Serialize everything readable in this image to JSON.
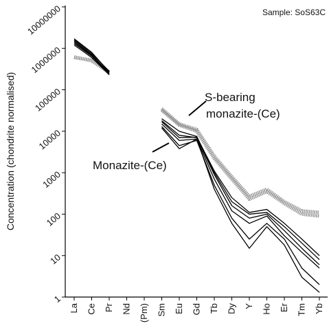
{
  "chart_data": {
    "type": "line",
    "sample_label": "Sample: SoS63C",
    "ylabel": "Concentration (chondrite normalised)",
    "annotations": [
      {
        "lines": [
          "S-bearing",
          "monazite-(Ce)"
        ]
      },
      {
        "lines": [
          "Monazite-(Ce)"
        ]
      }
    ],
    "categories": [
      "La",
      "Ce",
      "Pr",
      "Nd",
      "(Pm)",
      "Sm",
      "Eu",
      "Gd",
      "Tb",
      "Dy",
      "Y",
      "Ho",
      "Er",
      "Tm",
      "Yb"
    ],
    "log_scale": true,
    "ylim": [
      1,
      10000000
    ],
    "yticks": [
      1,
      10,
      100,
      1000,
      10000,
      100000,
      1000000,
      10000000
    ],
    "series": [
      {
        "color": "#999999",
        "style": "hatched",
        "values": [
          600000,
          520000,
          270000,
          null,
          null,
          35000,
          15000,
          11000,
          2500,
          800,
          270,
          400,
          200,
          120,
          110
        ]
      },
      {
        "color": "#999999",
        "style": "hatched",
        "values": [
          620000,
          500000,
          260000,
          null,
          null,
          32000,
          14000,
          10000,
          2200,
          700,
          230,
          350,
          180,
          100,
          90
        ]
      },
      {
        "color": "#000000",
        "values": [
          1700000,
          800000,
          270000,
          null,
          null,
          20000,
          10000,
          7500,
          1000,
          200,
          100,
          110,
          50,
          20,
          8
        ]
      },
      {
        "color": "#000000",
        "values": [
          1500000,
          700000,
          250000,
          null,
          null,
          18000,
          8000,
          7000,
          900,
          160,
          80,
          100,
          40,
          15,
          6
        ]
      },
      {
        "color": "#000000",
        "values": [
          1300000,
          650000,
          240000,
          null,
          null,
          15000,
          6000,
          6500,
          700,
          120,
          60,
          90,
          30,
          12,
          5
        ]
      },
      {
        "color": "#000000",
        "values": [
          1200000,
          600000,
          230000,
          null,
          null,
          13000,
          4500,
          6000,
          500,
          80,
          25,
          60,
          25,
          5,
          2
        ]
      },
      {
        "color": "#000000",
        "values": [
          1400000,
          680000,
          260000,
          null,
          null,
          12000,
          3800,
          6500,
          400,
          60,
          15,
          50,
          18,
          3,
          1.3
        ]
      },
      {
        "color": "#000000",
        "values": [
          1600000,
          750000,
          280000,
          null,
          null,
          17000,
          7000,
          7200,
          1100,
          250,
          110,
          130,
          60,
          25,
          10
        ]
      }
    ]
  }
}
